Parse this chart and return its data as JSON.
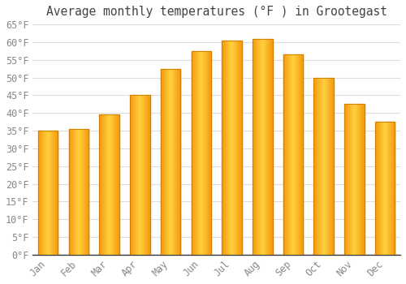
{
  "title": "Average monthly temperatures (°F ) in Grootegast",
  "months": [
    "Jan",
    "Feb",
    "Mar",
    "Apr",
    "May",
    "Jun",
    "Jul",
    "Aug",
    "Sep",
    "Oct",
    "Nov",
    "Dec"
  ],
  "values": [
    35,
    35.5,
    39.5,
    45,
    52.5,
    57.5,
    60.5,
    61,
    56.5,
    50,
    42.5,
    37.5
  ],
  "bar_color": "#FFA500",
  "bar_edge_color": "#E08000",
  "background_color": "#FFFFFF",
  "plot_bg_color": "#FFFFFF",
  "grid_color": "#DDDDDD",
  "text_color": "#888888",
  "title_color": "#444444",
  "ylim": [
    0,
    65
  ],
  "yticks": [
    0,
    5,
    10,
    15,
    20,
    25,
    30,
    35,
    40,
    45,
    50,
    55,
    60,
    65
  ],
  "ytick_labels": [
    "0°F",
    "5°F",
    "10°F",
    "15°F",
    "20°F",
    "25°F",
    "30°F",
    "35°F",
    "40°F",
    "45°F",
    "50°F",
    "55°F",
    "60°F",
    "65°F"
  ],
  "title_fontsize": 10.5,
  "tick_fontsize": 8.5,
  "bar_width": 0.65,
  "figsize": [
    5.0,
    3.5
  ],
  "dpi": 100
}
